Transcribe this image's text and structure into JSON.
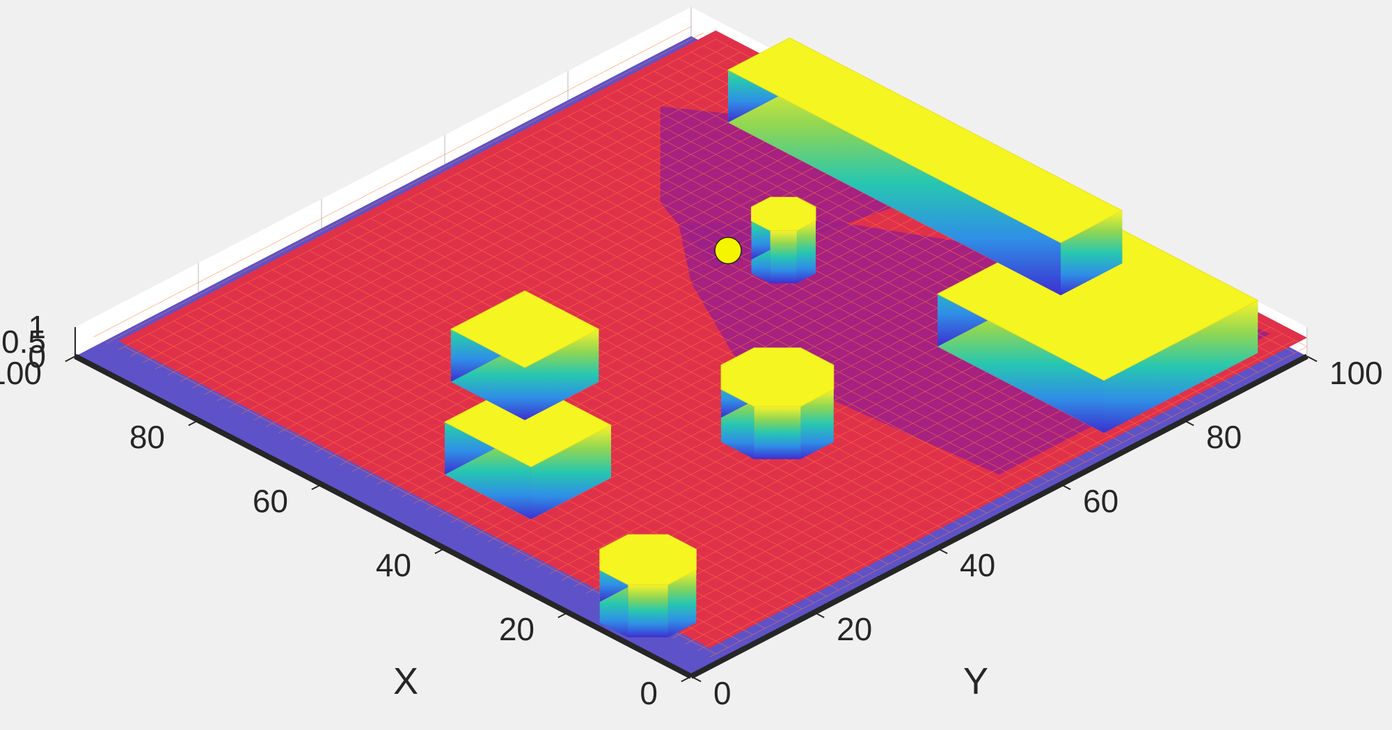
{
  "chart_data": {
    "type": "surface",
    "title": "",
    "xlabel": "X",
    "ylabel": "Y",
    "zlabel": "",
    "xlim": [
      0,
      100
    ],
    "ylim": [
      0,
      100
    ],
    "zlim": [
      0,
      1
    ],
    "x_ticks": [
      "0",
      "20",
      "40",
      "60",
      "80",
      "100"
    ],
    "y_ticks": [
      "0",
      "20",
      "40",
      "60",
      "80",
      "100"
    ],
    "z_ticks": [
      "0",
      "0.5",
      "1"
    ],
    "grid": true,
    "colormap": [
      "#3d2fd0",
      "#2f8fe6",
      "#27c7b0",
      "#8fd654",
      "#f6f22c"
    ],
    "surface_colors": {
      "top": "#f5f521",
      "mid": "#9b1f8a",
      "low": "#e0314a",
      "mesh": "#ff7a3c",
      "base": "#5e52c8"
    },
    "obstacles": [
      {
        "shape": "rect",
        "x": [
          3,
          30
        ],
        "y": [
          70,
          95
        ],
        "height": 1
      },
      {
        "shape": "rect",
        "x": [
          28,
          82
        ],
        "y": [
          88,
          98
        ],
        "height": 1
      },
      {
        "shape": "octagon",
        "cx": 30,
        "cy": 44,
        "r": 7,
        "height": 1
      },
      {
        "shape": "octagon",
        "cx": 12,
        "cy": 5,
        "r": 6,
        "height": 1
      },
      {
        "shape": "rect",
        "x": [
          36,
          50
        ],
        "y": [
          10,
          23
        ],
        "height": 1
      },
      {
        "shape": "rect",
        "x": [
          52,
          64
        ],
        "y": [
          25,
          37
        ],
        "height": 1
      },
      {
        "shape": "octagon",
        "cx": 55,
        "cy": 70,
        "r": 4,
        "height": 1
      }
    ],
    "point": {
      "x": 62,
      "y": 68,
      "z": 0,
      "color": "#f5f500"
    }
  }
}
